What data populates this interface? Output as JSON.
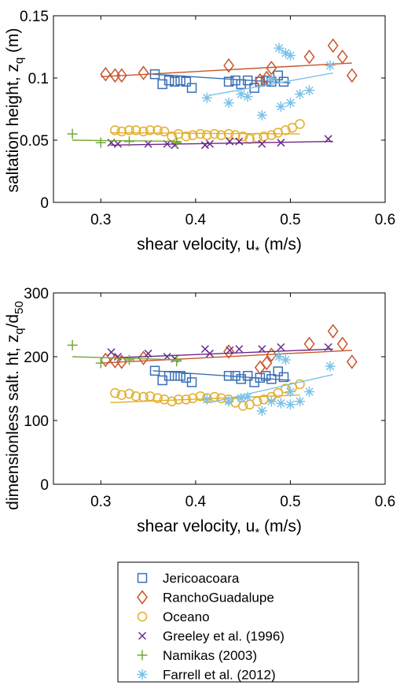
{
  "colors": {
    "jericoacoara": "#3a6fb5",
    "ranchoguadalupe": "#c8542a",
    "oceano": "#e2ae2a",
    "greeley": "#6a2a8a",
    "namikas": "#74a83a",
    "farrell": "#7ac2ea"
  },
  "legend": {
    "placement": "below",
    "entries": [
      {
        "key": "jericoacoara",
        "label": "Jericoacoara",
        "marker": "square"
      },
      {
        "key": "ranchoguadalupe",
        "label": "RanchoGuadalupe",
        "marker": "diamond"
      },
      {
        "key": "oceano",
        "label": "Oceano",
        "marker": "circle"
      },
      {
        "key": "greeley",
        "label": "Greeley et al. (1996)",
        "marker": "x"
      },
      {
        "key": "namikas",
        "label": "Namikas (2003)",
        "marker": "plus"
      },
      {
        "key": "farrell",
        "label": "Farrell et al. (2012)",
        "marker": "asterisk"
      }
    ]
  },
  "chart_data": [
    {
      "type": "scatter",
      "xlabel": "shear velocity, u",
      "xlabel_sub": "*",
      "xlabel_units": " (m/s)",
      "ylabel": "saltation height, z",
      "ylabel_sub": "q",
      "ylabel_units": " (m)",
      "xlim": [
        0.25,
        0.6
      ],
      "ylim": [
        0,
        0.15
      ],
      "xticks": [
        0.3,
        0.4,
        0.5,
        0.6
      ],
      "xtick_labels": [
        "0.3",
        "0.4",
        "0.5",
        "0.6"
      ],
      "yticks": [
        0,
        0.05,
        0.1,
        0.15
      ],
      "ytick_labels": [
        "0",
        "0.05",
        "0.1",
        "0.15"
      ],
      "grid": false,
      "series": [
        {
          "key": "jericoacoara",
          "marker": "square",
          "x": [
            0.357,
            0.365,
            0.372,
            0.378,
            0.384,
            0.39,
            0.396,
            0.435,
            0.442,
            0.448,
            0.455,
            0.462,
            0.468,
            0.474,
            0.48,
            0.487,
            0.493
          ],
          "y": [
            0.103,
            0.095,
            0.098,
            0.097,
            0.098,
            0.097,
            0.092,
            0.097,
            0.098,
            0.095,
            0.098,
            0.092,
            0.097,
            0.098,
            0.097,
            0.102,
            0.097
          ],
          "fit": [
            [
              0.355,
              0.103
            ],
            [
              0.5,
              0.096
            ]
          ]
        },
        {
          "key": "ranchoguadalupe",
          "marker": "diamond",
          "x": [
            0.305,
            0.315,
            0.322,
            0.345,
            0.435,
            0.468,
            0.475,
            0.48,
            0.52,
            0.545,
            0.555,
            0.565
          ],
          "y": [
            0.103,
            0.102,
            0.102,
            0.104,
            0.11,
            0.098,
            0.1,
            0.108,
            0.117,
            0.126,
            0.117,
            0.102
          ],
          "fit": [
            [
              0.3,
              0.101
            ],
            [
              0.565,
              0.112
            ]
          ]
        },
        {
          "key": "oceano",
          "marker": "circle",
          "x": [
            0.315,
            0.322,
            0.33,
            0.337,
            0.345,
            0.352,
            0.36,
            0.367,
            0.375,
            0.382,
            0.39,
            0.397,
            0.405,
            0.412,
            0.42,
            0.427,
            0.435,
            0.442,
            0.45,
            0.457,
            0.465,
            0.472,
            0.48,
            0.487,
            0.495,
            0.502,
            0.51
          ],
          "y": [
            0.058,
            0.057,
            0.058,
            0.058,
            0.057,
            0.058,
            0.058,
            0.057,
            0.053,
            0.055,
            0.053,
            0.054,
            0.055,
            0.054,
            0.055,
            0.054,
            0.055,
            0.054,
            0.053,
            0.051,
            0.052,
            0.053,
            0.054,
            0.056,
            0.058,
            0.06,
            0.063
          ],
          "fit": [
            [
              0.31,
              0.056
            ],
            [
              0.51,
              0.055
            ]
          ]
        },
        {
          "key": "greeley",
          "marker": "x",
          "x": [
            0.311,
            0.318,
            0.35,
            0.37,
            0.378,
            0.41,
            0.415,
            0.436,
            0.446,
            0.47,
            0.49,
            0.54
          ],
          "y": [
            0.048,
            0.047,
            0.047,
            0.047,
            0.046,
            0.046,
            0.047,
            0.049,
            0.049,
            0.047,
            0.048,
            0.051
          ],
          "fit": [
            [
              0.31,
              0.046
            ],
            [
              0.545,
              0.049
            ]
          ]
        },
        {
          "key": "namikas",
          "marker": "plus",
          "x": [
            0.27,
            0.3,
            0.33,
            0.38
          ],
          "y": [
            0.055,
            0.048,
            0.049,
            0.048
          ],
          "fit": [
            [
              0.27,
              0.05
            ],
            [
              0.385,
              0.049
            ]
          ]
        },
        {
          "key": "farrell",
          "marker": "asterisk",
          "x": [
            0.412,
            0.435,
            0.448,
            0.455,
            0.47,
            0.48,
            0.488,
            0.49,
            0.495,
            0.5,
            0.5,
            0.51,
            0.52,
            0.542
          ],
          "y": [
            0.084,
            0.08,
            0.087,
            0.085,
            0.07,
            0.099,
            0.124,
            0.077,
            0.12,
            0.118,
            0.08,
            0.087,
            0.09,
            0.11
          ],
          "fit": [
            [
              0.415,
              0.086
            ],
            [
              0.545,
              0.104
            ]
          ]
        }
      ]
    },
    {
      "type": "scatter",
      "xlabel": "shear velocity, u",
      "xlabel_sub": "*",
      "xlabel_units": " (m/s)",
      "ylabel": "dimensionless salt. ht, z",
      "ylabel_sub": "q",
      "ylabel_mid": "/d",
      "ylabel_sub2": "50",
      "xlim": [
        0.25,
        0.6
      ],
      "ylim": [
        0,
        300
      ],
      "xticks": [
        0.3,
        0.4,
        0.5,
        0.6
      ],
      "xtick_labels": [
        "0.3",
        "0.4",
        "0.5",
        "0.6"
      ],
      "yticks": [
        0,
        100,
        200,
        300
      ],
      "ytick_labels": [
        "0",
        "100",
        "200",
        "300"
      ],
      "grid": false,
      "series": [
        {
          "key": "jericoacoara",
          "marker": "square",
          "x": [
            0.357,
            0.365,
            0.372,
            0.378,
            0.384,
            0.39,
            0.396,
            0.435,
            0.442,
            0.448,
            0.455,
            0.462,
            0.468,
            0.474,
            0.48,
            0.487,
            0.493
          ],
          "y": [
            178,
            163,
            170,
            170,
            170,
            167,
            160,
            170,
            170,
            165,
            170,
            160,
            167,
            170,
            165,
            177,
            168
          ],
          "fit": [
            [
              0.355,
              178
            ],
            [
              0.5,
              163
            ]
          ]
        },
        {
          "key": "ranchoguadalupe",
          "marker": "diamond",
          "x": [
            0.305,
            0.315,
            0.322,
            0.345,
            0.435,
            0.468,
            0.475,
            0.48,
            0.52,
            0.545,
            0.555,
            0.565
          ],
          "y": [
            195,
            193,
            192,
            198,
            208,
            183,
            190,
            203,
            220,
            240,
            220,
            192
          ],
          "fit": [
            [
              0.3,
              190
            ],
            [
              0.565,
              210
            ]
          ]
        },
        {
          "key": "oceano",
          "marker": "circle",
          "x": [
            0.315,
            0.322,
            0.33,
            0.337,
            0.345,
            0.352,
            0.36,
            0.367,
            0.375,
            0.382,
            0.39,
            0.397,
            0.405,
            0.412,
            0.42,
            0.427,
            0.435,
            0.442,
            0.45,
            0.457,
            0.465,
            0.472,
            0.48,
            0.487,
            0.495,
            0.502,
            0.51
          ],
          "y": [
            143,
            140,
            142,
            138,
            137,
            138,
            135,
            133,
            130,
            133,
            133,
            135,
            138,
            135,
            137,
            135,
            133,
            128,
            123,
            125,
            130,
            133,
            137,
            143,
            150,
            152,
            157
          ],
          "fit": [
            [
              0.31,
              128
            ],
            [
              0.51,
              140
            ]
          ]
        },
        {
          "key": "greeley",
          "marker": "x",
          "x": [
            0.311,
            0.318,
            0.35,
            0.37,
            0.378,
            0.41,
            0.415,
            0.436,
            0.446,
            0.47,
            0.49,
            0.54
          ],
          "y": [
            207,
            200,
            205,
            200,
            197,
            212,
            205,
            210,
            212,
            212,
            215,
            215
          ],
          "fit": [
            [
              0.31,
              198
            ],
            [
              0.545,
              212
            ]
          ]
        },
        {
          "key": "namikas",
          "marker": "plus",
          "x": [
            0.27,
            0.3,
            0.33,
            0.38
          ],
          "y": [
            218,
            190,
            195,
            193
          ],
          "fit": [
            [
              0.27,
              200
            ],
            [
              0.385,
              195
            ]
          ]
        },
        {
          "key": "farrell",
          "marker": "asterisk",
          "x": [
            0.412,
            0.435,
            0.448,
            0.455,
            0.47,
            0.48,
            0.488,
            0.49,
            0.495,
            0.5,
            0.5,
            0.51,
            0.52,
            0.542
          ],
          "y": [
            133,
            130,
            135,
            137,
            115,
            130,
            200,
            127,
            195,
            145,
            125,
            130,
            145,
            185
          ],
          "fit": [
            [
              0.415,
              128
            ],
            [
              0.545,
              172
            ]
          ]
        }
      ]
    }
  ]
}
